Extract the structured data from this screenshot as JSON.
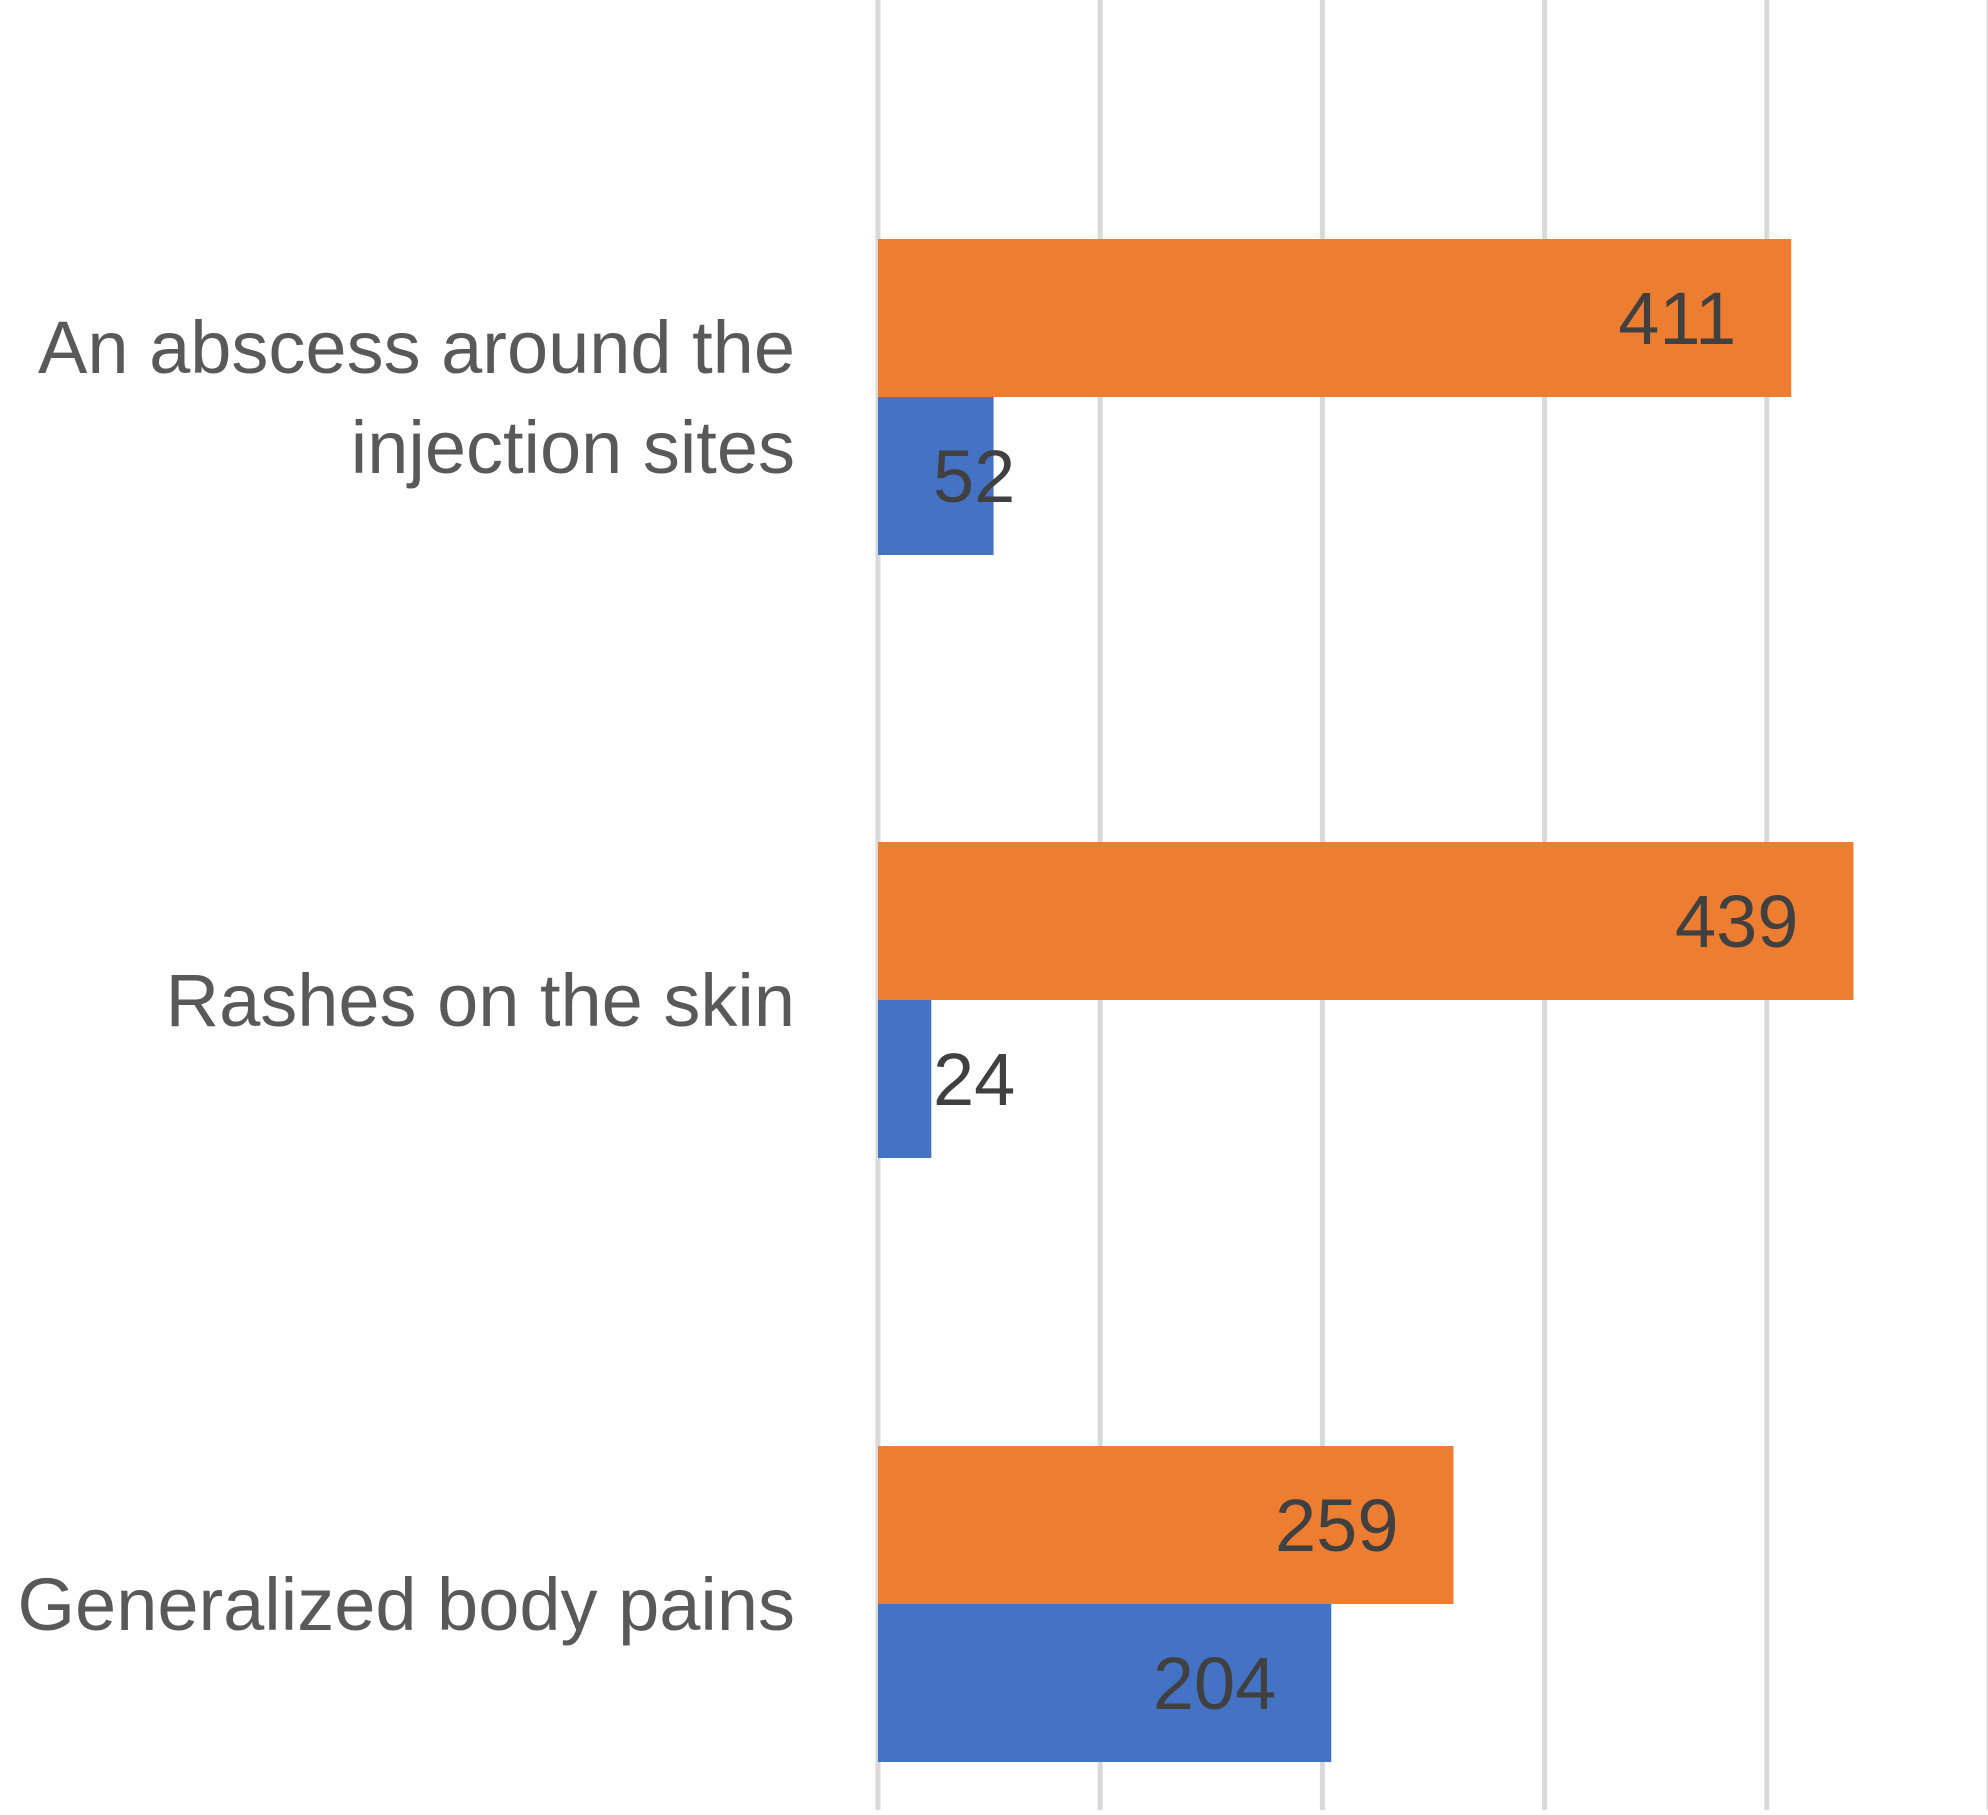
{
  "chart_data": {
    "type": "bar",
    "orientation": "horizontal",
    "categories": [
      [
        "An abscess around the",
        "injection sites"
      ],
      [
        "Rashes on the skin"
      ],
      [
        "Generalized body pains"
      ]
    ],
    "series": [
      {
        "values": [
          411,
          439,
          259
        ],
        "color": "#ED7D31"
      },
      {
        "values": [
          52,
          24,
          204
        ],
        "color": "#4472C4"
      }
    ],
    "xlim": [
      0,
      500
    ],
    "x_gridline_step": 100,
    "grid": true,
    "data_labels": true,
    "title": "",
    "xlabel": "",
    "ylabel": ""
  }
}
